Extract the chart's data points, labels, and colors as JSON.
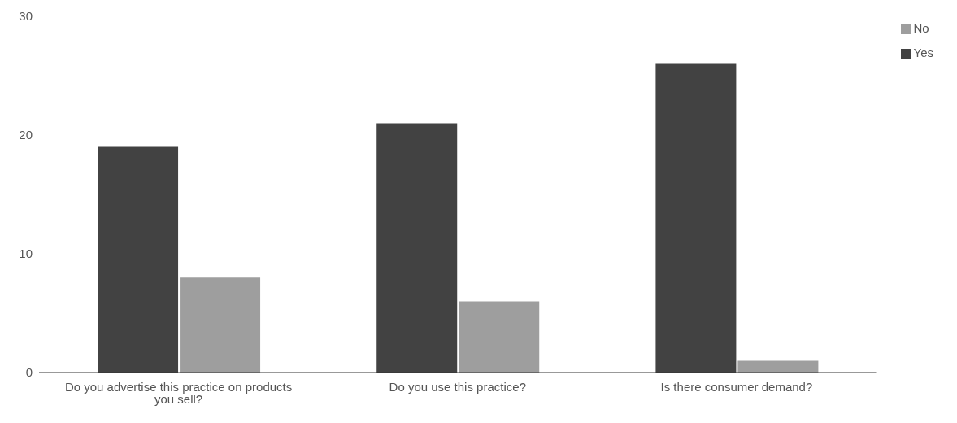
{
  "chart_data": {
    "type": "bar",
    "categories": [
      "Do you advertise this practice on products you sell?",
      "Do you use this practice?",
      "Is there consumer demand?"
    ],
    "series": [
      {
        "name": "Yes",
        "color": "#424242",
        "values": [
          19,
          21,
          26
        ]
      },
      {
        "name": "No",
        "color": "#9e9e9e",
        "values": [
          8,
          6,
          1
        ]
      }
    ],
    "ylim": [
      0,
      30
    ],
    "yticks": [
      0,
      10,
      20,
      30
    ],
    "grid": false,
    "legend": "top right"
  }
}
